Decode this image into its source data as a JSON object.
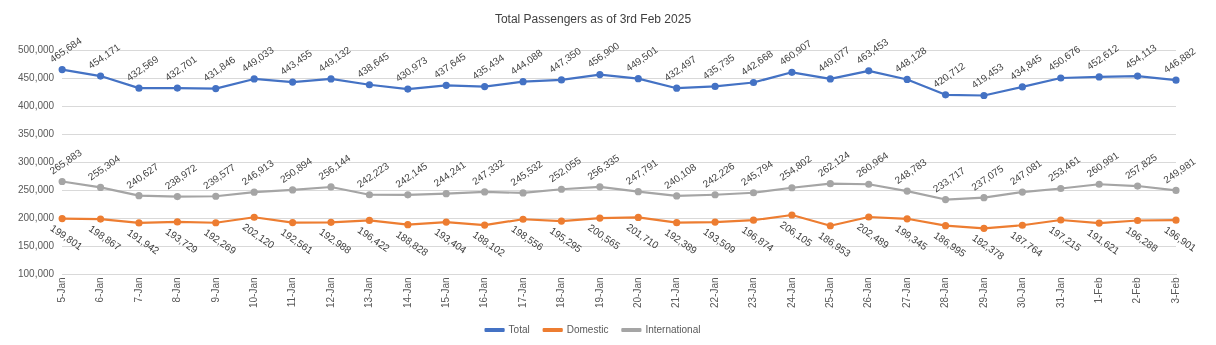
{
  "chart_data": {
    "type": "line",
    "title": "Total Passengers as of 3rd Feb 2025",
    "categories": [
      "5-Jan",
      "6-Jan",
      "7-Jan",
      "8-Jan",
      "9-Jan",
      "10-Jan",
      "11-Jan",
      "12-Jan",
      "13-Jan",
      "14-Jan",
      "15-Jan",
      "16-Jan",
      "17-Jan",
      "18-Jan",
      "19-Jan",
      "20-Jan",
      "21-Jan",
      "22-Jan",
      "23-Jan",
      "24-Jan",
      "25-Jan",
      "26-Jan",
      "27-Jan",
      "28-Jan",
      "29-Jan",
      "30-Jan",
      "31-Jan",
      "1-Feb",
      "2-Feb",
      "3-Feb"
    ],
    "series": [
      {
        "name": "Total",
        "color": "#4472c4",
        "values": [
          465684,
          454171,
          432569,
          432701,
          431846,
          449033,
          443455,
          449132,
          438645,
          430973,
          437645,
          435434,
          444088,
          447350,
          456900,
          449501,
          432497,
          435735,
          442668,
          460907,
          449077,
          463453,
          448128,
          420712,
          419453,
          434845,
          450676,
          452612,
          454113,
          446882
        ],
        "value_labels": [
          "465,684",
          "454,171",
          "432,569",
          "432,701",
          "431,846",
          "449,033",
          "443,455",
          "449,132",
          "438,645",
          "430,973",
          "437,645",
          "435,434",
          "444,088",
          "447,350",
          "456,900",
          "449,501",
          "432,497",
          "435,735",
          "442,668",
          "460,907",
          "449,077",
          "463,453",
          "448,128",
          "420,712",
          "419,453",
          "434,845",
          "450,676",
          "452,612",
          "454,113",
          "446,882"
        ]
      },
      {
        "name": "Domestic",
        "color": "#ed7d31",
        "values": [
          199801,
          198867,
          191942,
          193729,
          192269,
          202120,
          192561,
          192988,
          196422,
          188828,
          193404,
          188102,
          198556,
          195295,
          200565,
          201710,
          192389,
          193509,
          196874,
          206105,
          186953,
          202489,
          199345,
          186995,
          182378,
          187764,
          197215,
          191621,
          196288,
          196901
        ],
        "value_labels": [
          "199,801",
          "198,867",
          "191,942",
          "193,729",
          "192,269",
          "202,120",
          "192,561",
          "192,988",
          "196,422",
          "188,828",
          "193,404",
          "188,102",
          "198,556",
          "195,295",
          "200,565",
          "201,710",
          "192,389",
          "193,509",
          "196,874",
          "206,105",
          "186,953",
          "202,489",
          "199,345",
          "186,995",
          "182,378",
          "187,764",
          "197,215",
          "191,621",
          "196,288",
          "196,901"
        ]
      },
      {
        "name": "International",
        "color": "#a5a5a5",
        "values": [
          265883,
          255304,
          240627,
          238972,
          239577,
          246913,
          250894,
          256144,
          242223,
          242145,
          244241,
          247332,
          245532,
          252055,
          256335,
          247791,
          240108,
          242226,
          245794,
          254802,
          262124,
          260964,
          248783,
          233717,
          237075,
          247081,
          253461,
          260991,
          257825,
          249981
        ],
        "value_labels": [
          "265,883",
          "255,304",
          "240,627",
          "238,972",
          "239,577",
          "246,913",
          "250,894",
          "256,144",
          "242,223",
          "242,145",
          "244,241",
          "247,332",
          "245,532",
          "252,055",
          "256,335",
          "247,791",
          "240,108",
          "242,226",
          "245,794",
          "254,802",
          "262,124",
          "260,964",
          "248,783",
          "233,717",
          "237,075",
          "247,081",
          "253,461",
          "260,991",
          "257,825",
          "249,981"
        ]
      }
    ],
    "ylim": [
      100000,
      500000
    ],
    "yticks": [
      {
        "value": 100000,
        "label": "100,000"
      },
      {
        "value": 150000,
        "label": "150,000"
      },
      {
        "value": 200000,
        "label": "200,000"
      },
      {
        "value": 250000,
        "label": "250,000"
      },
      {
        "value": 300000,
        "label": "300,000"
      },
      {
        "value": 350000,
        "label": "350,000"
      },
      {
        "value": 400000,
        "label": "400,000"
      },
      {
        "value": 450000,
        "label": "450,000"
      },
      {
        "value": 500000,
        "label": "500,000"
      }
    ],
    "grid": "y",
    "legend": "bottom",
    "marker": "circle",
    "line_style": "solid"
  }
}
